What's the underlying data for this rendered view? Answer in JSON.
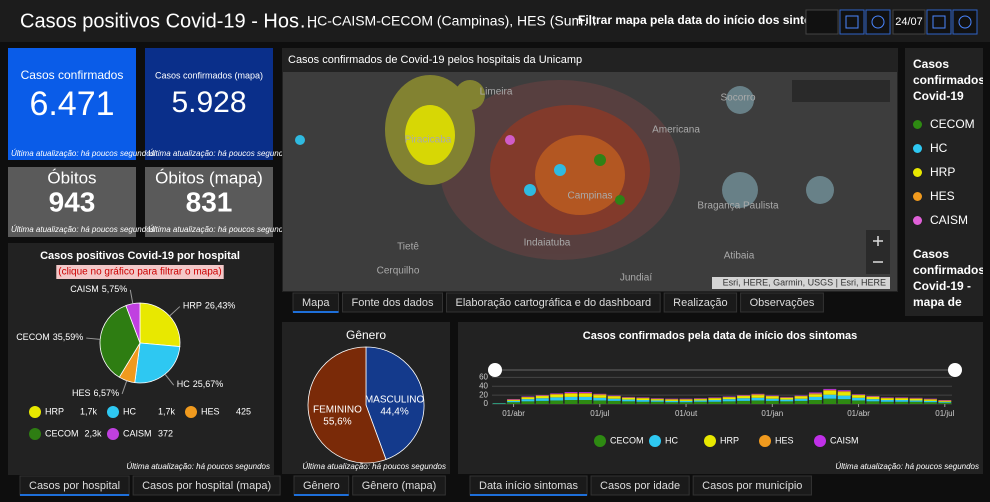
{
  "header": {
    "title": "Casos positivos Covid-19 - Hos…",
    "subtitle": "HC-CAISM-CECOM (Campinas), HES (Sum…",
    "filter_label": "Filtrar mapa pela data do início dos sintomas",
    "date_end": "24/07"
  },
  "indicators": [
    {
      "label": "Casos confirmados",
      "value": "6.471",
      "note": "Última atualização: há poucos segundos"
    },
    {
      "label": "Casos confirmados (mapa)",
      "value": "5.928",
      "note": "Última atualização: há poucos segundos"
    },
    {
      "label": "Óbitos",
      "value": "943",
      "note": "Última atualização: há poucos segundos"
    },
    {
      "label": "Óbitos (mapa)",
      "value": "831",
      "note": "Última atualização: há poucos segundos"
    }
  ],
  "map": {
    "title": "Casos confirmados de Covid-19 pelos hospitais da Unicamp",
    "places": [
      "Limeira",
      "Piracicaba",
      "Americana",
      "Socorro",
      "Campinas",
      "Bragança Paulista",
      "Tietê",
      "Indaiatuba",
      "Cerquilho",
      "Jundiaí",
      "Atibaia"
    ],
    "attribution": "Esri, HERE, Garmin, USGS | Esri, HERE",
    "tabs": [
      "Mapa",
      "Fonte dos dados",
      "Elaboração cartográfica e do dashboard",
      "Realização",
      "Observações"
    ]
  },
  "legend_panel": {
    "title": "Casos confirmados Covid-19",
    "items": [
      "CECOM",
      "HC",
      "HRP",
      "HES",
      "CAISM"
    ],
    "colors": [
      "#2e8a12",
      "#2ec8f2",
      "#e8e800",
      "#f09a1e",
      "#e060d8"
    ],
    "title2": "Casos confirmados Covid-19 - mapa de"
  },
  "chart_data": [
    {
      "type": "pie",
      "title": "Casos positivos Covid-19 por hospital",
      "subtitle": "(clique no gráfico para filtrar o mapa)",
      "categories": [
        "HRP",
        "HC",
        "HES",
        "CECOM",
        "CAISM"
      ],
      "values": [
        26.43,
        25.67,
        6.57,
        35.59,
        5.75
      ],
      "value_labels": [
        "26,43%",
        "25,67%",
        "6,57%",
        "35,59%",
        "5,75%"
      ],
      "colors": [
        "#e8e800",
        "#2ec8f2",
        "#f09a1e",
        "#2e7d12",
        "#c040e0"
      ],
      "legend_counts": [
        "1,7k",
        "1,7k",
        "425",
        "2,3k",
        "372"
      ],
      "footnote": "Última atualização: há poucos segundos",
      "tabs": [
        "Casos por hospital",
        "Casos por hospital (mapa)"
      ]
    },
    {
      "type": "pie",
      "title": "Gênero",
      "categories": [
        "MASCULINO",
        "FEMININO"
      ],
      "values": [
        44.4,
        55.6
      ],
      "value_labels": [
        "44,4%",
        "55,6%"
      ],
      "colors": [
        "#143a8c",
        "#7a2a08"
      ],
      "footnote": "Última atualização: há poucos segundos",
      "tabs": [
        "Gênero",
        "Gênero (mapa)"
      ]
    },
    {
      "type": "bar",
      "title": "Casos confirmados pela data de início dos sintomas",
      "categories": [
        null,
        "01/abr",
        null,
        null,
        null,
        null,
        null,
        "01/jul",
        null,
        null,
        null,
        null,
        null,
        "01/out",
        null,
        null,
        null,
        null,
        null,
        "01/jan",
        null,
        null,
        null,
        null,
        null,
        "01/abr",
        null,
        null,
        null,
        null,
        null,
        "01/jul"
      ],
      "series": [
        {
          "name": "CECOM",
          "color": "#2e8a12",
          "values": [
            1,
            4,
            6,
            7,
            8,
            9,
            9,
            8,
            7,
            6,
            5,
            5,
            4,
            4,
            5,
            5,
            6,
            7,
            8,
            7,
            6,
            7,
            9,
            12,
            11,
            8,
            6,
            5,
            5,
            5,
            4,
            3
          ]
        },
        {
          "name": "HC",
          "color": "#2ec8f2",
          "values": [
            1,
            3,
            5,
            6,
            7,
            7,
            7,
            6,
            5,
            4,
            4,
            3,
            3,
            3,
            3,
            4,
            5,
            6,
            6,
            5,
            4,
            5,
            7,
            9,
            8,
            6,
            5,
            4,
            4,
            3,
            3,
            2
          ]
        },
        {
          "name": "HRP",
          "color": "#e8e800",
          "values": [
            0,
            2,
            4,
            5,
            6,
            7,
            7,
            6,
            5,
            4,
            4,
            3,
            3,
            3,
            3,
            4,
            4,
            5,
            6,
            5,
            4,
            5,
            6,
            9,
            8,
            6,
            5,
            4,
            4,
            4,
            3,
            2
          ]
        },
        {
          "name": "HES",
          "color": "#f09a1e",
          "values": [
            0,
            1,
            1,
            1,
            2,
            2,
            2,
            2,
            1,
            1,
            1,
            1,
            1,
            1,
            1,
            1,
            1,
            1,
            2,
            1,
            1,
            1,
            2,
            2,
            2,
            1,
            1,
            1,
            1,
            1,
            1,
            1
          ]
        },
        {
          "name": "CAISM",
          "color": "#c030e8",
          "values": [
            0,
            1,
            1,
            1,
            1,
            2,
            2,
            1,
            1,
            1,
            1,
            1,
            1,
            1,
            1,
            1,
            1,
            1,
            1,
            1,
            1,
            1,
            2,
            2,
            2,
            1,
            1,
            1,
            1,
            1,
            1,
            1
          ]
        }
      ],
      "ylim": [
        0,
        70
      ],
      "yticks": [
        0,
        20,
        40,
        60
      ],
      "grid": true,
      "footnote": "Última atualização: há poucos segundos",
      "tabs": [
        "Data início sintomas",
        "Casos por idade",
        "Casos por município"
      ]
    }
  ]
}
